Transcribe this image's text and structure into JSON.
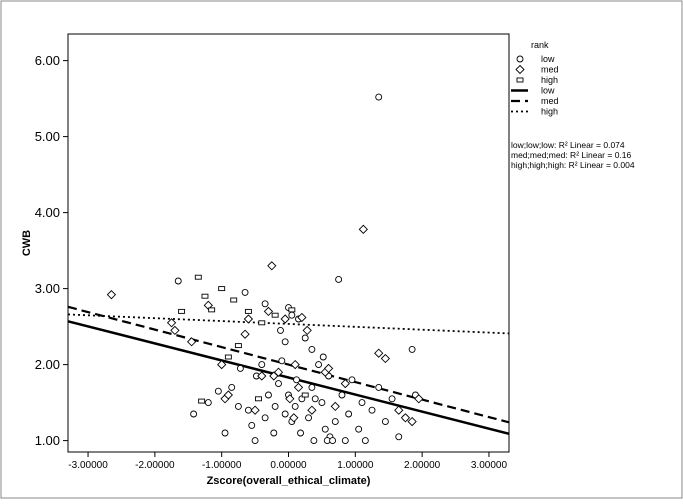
{
  "chart_data": {
    "type": "scatter",
    "title": "",
    "xlabel": "Zscore(overall_ethical_climate)",
    "ylabel": "CWB",
    "xlim": [
      -3.3,
      3.3
    ],
    "ylim": [
      0.85,
      6.35
    ],
    "x_ticks": [
      -3,
      -2,
      -1,
      0,
      1,
      2,
      3
    ],
    "x_tick_labels": [
      "-3.00000",
      "-2.00000",
      "-1.00000",
      "0.00000",
      "1.00000",
      "2.00000",
      "3.00000"
    ],
    "y_ticks": [
      1,
      2,
      3,
      4,
      5,
      6
    ],
    "y_tick_labels": [
      "1.00",
      "2.00",
      "3.00",
      "4.00",
      "5.00",
      "6.00"
    ],
    "grid": false,
    "legend": {
      "title": "rank",
      "placement": "top-right",
      "entries": [
        {
          "label": "low",
          "kind": "marker",
          "marker": "circle"
        },
        {
          "label": "med",
          "kind": "marker",
          "marker": "diamond"
        },
        {
          "label": "high",
          "kind": "marker",
          "marker": "square"
        },
        {
          "label": "low",
          "kind": "line",
          "dash": "solid"
        },
        {
          "label": "med",
          "kind": "line",
          "dash": "dashed"
        },
        {
          "label": "high",
          "kind": "line",
          "dash": "dotted"
        }
      ]
    },
    "r2_notes": [
      "low;low;low: R² Linear = 0.074",
      "med;med;med: R² Linear = 0.16",
      "high;high;high: R² Linear = 0.004"
    ],
    "series": [
      {
        "name": "low",
        "marker": "circle",
        "points": [
          [
            -1.42,
            1.35
          ],
          [
            -1.2,
            1.5
          ],
          [
            -1.05,
            1.65
          ],
          [
            -0.95,
            1.1
          ],
          [
            -0.85,
            1.7
          ],
          [
            -0.75,
            1.45
          ],
          [
            -0.72,
            1.95
          ],
          [
            -0.6,
            1.4
          ],
          [
            -0.55,
            1.2
          ],
          [
            -0.5,
            1.0
          ],
          [
            -0.48,
            1.85
          ],
          [
            -0.4,
            2.0
          ],
          [
            -0.35,
            1.3
          ],
          [
            -0.3,
            1.6
          ],
          [
            -0.22,
            1.1
          ],
          [
            -0.2,
            1.45
          ],
          [
            -0.15,
            1.75
          ],
          [
            -0.1,
            2.05
          ],
          [
            -0.05,
            1.35
          ],
          [
            0.0,
            1.6
          ],
          [
            0.05,
            1.25
          ],
          [
            0.1,
            1.45
          ],
          [
            0.12,
            1.8
          ],
          [
            0.18,
            1.1
          ],
          [
            0.2,
            1.55
          ],
          [
            0.25,
            2.35
          ],
          [
            0.3,
            1.3
          ],
          [
            0.35,
            1.7
          ],
          [
            0.38,
            1.0
          ],
          [
            0.45,
            2.0
          ],
          [
            0.5,
            1.5
          ],
          [
            0.55,
            1.15
          ],
          [
            0.6,
            1.85
          ],
          [
            0.62,
            1.05
          ],
          [
            0.7,
            1.25
          ],
          [
            0.8,
            1.6
          ],
          [
            0.85,
            1.0
          ],
          [
            0.9,
            1.35
          ],
          [
            0.95,
            1.8
          ],
          [
            1.05,
            1.15
          ],
          [
            1.1,
            1.5
          ],
          [
            1.15,
            1.0
          ],
          [
            1.25,
            1.4
          ],
          [
            1.35,
            1.7
          ],
          [
            1.45,
            1.25
          ],
          [
            1.55,
            1.55
          ],
          [
            1.65,
            1.05
          ],
          [
            1.75,
            1.3
          ],
          [
            1.85,
            2.2
          ],
          [
            1.9,
            1.6
          ],
          [
            -1.65,
            3.1
          ],
          [
            -0.65,
            2.95
          ],
          [
            -0.35,
            2.8
          ],
          [
            -0.05,
            2.3
          ],
          [
            0.0,
            2.75
          ],
          [
            0.15,
            2.6
          ],
          [
            0.35,
            2.2
          ],
          [
            0.4,
            1.55
          ],
          [
            0.75,
            3.12
          ],
          [
            1.35,
            5.52
          ],
          [
            0.58,
            1.0
          ],
          [
            0.66,
            1.0
          ],
          [
            0.05,
            2.65
          ],
          [
            -0.12,
            2.45
          ],
          [
            0.52,
            2.1
          ]
        ]
      },
      {
        "name": "med",
        "marker": "diamond",
        "points": [
          [
            -2.65,
            2.92
          ],
          [
            -1.75,
            2.55
          ],
          [
            -1.7,
            2.45
          ],
          [
            -1.45,
            2.3
          ],
          [
            -1.2,
            2.78
          ],
          [
            -1.0,
            2.0
          ],
          [
            -0.95,
            1.55
          ],
          [
            -0.9,
            1.6
          ],
          [
            -0.65,
            2.4
          ],
          [
            -0.6,
            2.6
          ],
          [
            -0.5,
            1.4
          ],
          [
            -0.4,
            1.85
          ],
          [
            -0.3,
            2.7
          ],
          [
            -0.25,
            3.3
          ],
          [
            -0.22,
            1.85
          ],
          [
            -0.15,
            1.9
          ],
          [
            -0.05,
            2.6
          ],
          [
            0.02,
            1.55
          ],
          [
            0.08,
            1.3
          ],
          [
            0.1,
            2.0
          ],
          [
            0.15,
            1.7
          ],
          [
            0.2,
            2.62
          ],
          [
            0.28,
            2.45
          ],
          [
            0.35,
            1.4
          ],
          [
            0.55,
            1.9
          ],
          [
            0.6,
            1.95
          ],
          [
            0.7,
            1.45
          ],
          [
            0.85,
            1.75
          ],
          [
            1.12,
            3.78
          ],
          [
            1.35,
            2.15
          ],
          [
            1.45,
            2.08
          ],
          [
            1.65,
            1.4
          ],
          [
            1.75,
            1.3
          ],
          [
            1.85,
            1.25
          ],
          [
            1.95,
            1.55
          ]
        ]
      },
      {
        "name": "high",
        "marker": "square",
        "points": [
          [
            -1.35,
            3.15
          ],
          [
            -1.25,
            2.9
          ],
          [
            -1.15,
            2.72
          ],
          [
            -1.0,
            3.0
          ],
          [
            -0.9,
            2.1
          ],
          [
            -0.82,
            2.85
          ],
          [
            -0.75,
            2.25
          ],
          [
            -0.6,
            2.7
          ],
          [
            -0.45,
            1.55
          ],
          [
            -0.4,
            2.55
          ],
          [
            -0.2,
            2.65
          ],
          [
            0.05,
            2.72
          ],
          [
            0.25,
            1.6
          ],
          [
            -1.6,
            2.7
          ],
          [
            -1.3,
            1.52
          ]
        ]
      }
    ],
    "fit_lines": [
      {
        "name": "low",
        "dash": "solid",
        "x": [
          -3.3,
          3.3
        ],
        "y": [
          2.57,
          1.09
        ]
      },
      {
        "name": "med",
        "dash": "dashed",
        "x": [
          -3.3,
          3.3
        ],
        "y": [
          2.76,
          1.24
        ]
      },
      {
        "name": "high",
        "dash": "dotted",
        "x": [
          -3.3,
          3.3
        ],
        "y": [
          2.66,
          2.41
        ]
      }
    ]
  }
}
